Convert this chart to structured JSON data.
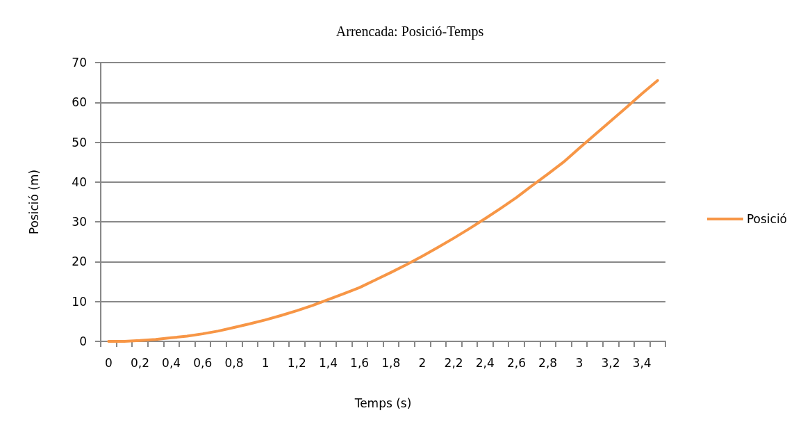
{
  "chart_data": {
    "type": "line",
    "title": "Arrencada: Posició-Temps",
    "xlabel": "Temps (s)",
    "ylabel": "Posició (m)",
    "categories": [
      "0",
      null,
      "0,2",
      null,
      "0,4",
      null,
      "0,6",
      null,
      "0,8",
      null,
      "1",
      null,
      "1,2",
      null,
      "1,4",
      null,
      "1,6",
      null,
      "1,8",
      null,
      "2",
      null,
      "2,2",
      null,
      "2,4",
      null,
      "2,6",
      null,
      "2,8",
      null,
      "3",
      null,
      "3,2",
      null,
      "3,4",
      null
    ],
    "series": [
      {
        "name": "Posició",
        "color": "#f79646",
        "values": [
          0,
          0,
          0.2,
          0.5,
          0.9,
          1.3,
          1.9,
          2.6,
          3.5,
          4.4,
          5.4,
          6.5,
          7.7,
          9.0,
          10.5,
          12.0,
          13.5,
          15.4,
          17.3,
          19.3,
          21.4,
          23.6,
          25.9,
          28.3,
          30.8,
          33.4,
          36.1,
          39.1,
          42.0,
          45.0,
          48.5,
          51.9,
          55.3,
          58.7,
          62.2,
          65.5
        ]
      }
    ],
    "ylim": [
      0,
      70
    ],
    "yticks": [
      0,
      10,
      20,
      30,
      40,
      50,
      60,
      70
    ],
    "grid": "y",
    "legend": "right",
    "marker": "none",
    "line_style": "solid"
  }
}
